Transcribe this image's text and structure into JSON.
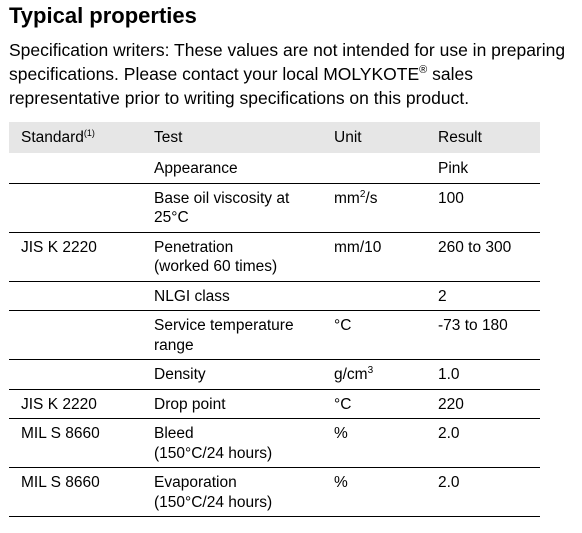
{
  "heading": "Typical properties",
  "intro": {
    "text": "Specification writers: These values are not intended for use in preparing specifications. Please contact your local MOLYKOTE",
    "mark": "®",
    "text_after": " sales representative prior to writing specifications on this product."
  },
  "table": {
    "headers": {
      "standard": "Standard",
      "standard_note": "(1)",
      "test": "Test",
      "unit": "Unit",
      "result": "Result"
    },
    "rows": [
      {
        "standard": "",
        "test": "Appearance",
        "unit": "",
        "unit_sup": "",
        "result": "Pink"
      },
      {
        "standard": "",
        "test": "Base oil viscosity at\n25°C",
        "unit": "mm",
        "unit_sup": "2",
        "unit_after": "/s",
        "result": "100"
      },
      {
        "standard": "JIS K 2220",
        "test": "Penetration\n(worked 60 times)",
        "unit": "mm/10",
        "unit_sup": "",
        "result": "260 to 300"
      },
      {
        "standard": "",
        "test": "NLGI class",
        "unit": "",
        "unit_sup": "",
        "result": "2"
      },
      {
        "standard": "",
        "test": "Service temperature\nrange",
        "unit": "°C",
        "unit_sup": "",
        "result": "-73 to 180"
      },
      {
        "standard": "",
        "test": "Density",
        "unit": "g/cm",
        "unit_sup": "3",
        "result": "1.0"
      },
      {
        "standard": "JIS K 2220",
        "test": "Drop point",
        "unit": "°C",
        "unit_sup": "",
        "result": "220"
      },
      {
        "standard": "MIL S 8660",
        "test": "Bleed\n(150°C/24 hours)",
        "unit": "%",
        "unit_sup": "",
        "result": "2.0"
      },
      {
        "standard": "MIL S 8660",
        "test": "Evaporation\n(150°C/24 hours)",
        "unit": "%",
        "unit_sup": "",
        "result": "2.0"
      }
    ]
  }
}
